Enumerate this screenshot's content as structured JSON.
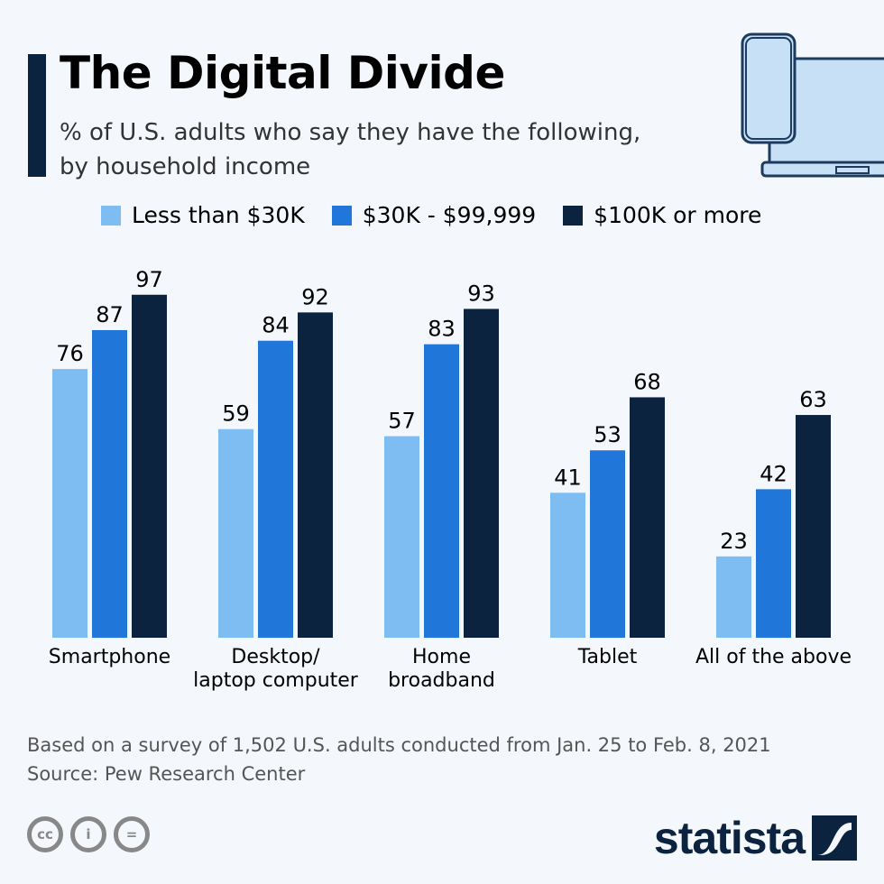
{
  "header": {
    "title": "The Digital Divide",
    "subtitle_line1": "% of U.S. adults who say they have the following,",
    "subtitle_line2": "by household income"
  },
  "colors": {
    "low": "#7dbdf2",
    "mid": "#2176d9",
    "high": "#0c2340",
    "background": "#f4f7fb"
  },
  "chart_data": {
    "type": "bar",
    "categories": [
      "Smartphone",
      "Desktop/\nlaptop computer",
      "Home\nbroadband",
      "Tablet",
      "All of the above"
    ],
    "series": [
      {
        "name": "Less than $30K",
        "values": [
          76,
          59,
          57,
          41,
          23
        ]
      },
      {
        "name": "$30K - $99,999",
        "values": [
          87,
          84,
          83,
          53,
          42
        ]
      },
      {
        "name": "$100K or more",
        "values": [
          97,
          92,
          93,
          68,
          63
        ]
      }
    ],
    "ylim": [
      0,
      100
    ],
    "grid": false,
    "legend": "top",
    "data_labels": true
  },
  "footer": {
    "note": "Based on a survey of 1,502 U.S. adults conducted from Jan. 25 to Feb. 8, 2021",
    "source": "Source: Pew Research Center",
    "brand": "statista",
    "license_icons": [
      "cc-icon",
      "attribution-icon",
      "no-derivatives-icon"
    ]
  }
}
